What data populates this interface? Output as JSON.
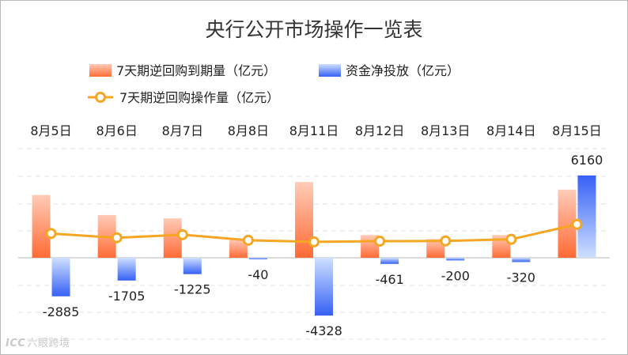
{
  "chart_data": {
    "type": "bar",
    "title": "央行公开市场操作一览表",
    "categories": [
      "8月5日",
      "8月6日",
      "8月7日",
      "8月8日",
      "8月11日",
      "8月12日",
      "8月13日",
      "8月14日",
      "8月15日"
    ],
    "series": [
      {
        "name": "7天期逆回购到期量（亿元）",
        "type": "bar",
        "values": [
          4700,
          3200,
          2950,
          1350,
          5665,
          1700,
          1400,
          1700,
          5100
        ]
      },
      {
        "name": "资金净投放（亿元）",
        "type": "bar",
        "values": [
          -2885,
          -1705,
          -1225,
          -40,
          -4328,
          -461,
          -200,
          -320,
          6160
        ]
      },
      {
        "name": "7天期逆回购操作量（亿元）",
        "type": "line",
        "values": [
          1815,
          1495,
          1725,
          1310,
          1189,
          1239,
          1260,
          1380,
          2500
        ]
      }
    ],
    "data_labels": [
      "-2885",
      "-1705",
      "-1225",
      "-40",
      "-4328",
      "-461",
      "-200",
      "-320",
      "6160"
    ],
    "ylim": [
      -6200,
      7200
    ],
    "grid": true,
    "legend_position": "top",
    "colors": {
      "maturity_bar_top": "#FFCBB8",
      "maturity_bar_bottom": "#FF6B35",
      "net_bar_top": "#CFE0FF",
      "net_bar_bottom": "#3560F5",
      "line": "#F5A623",
      "grid": "#e3e3e3",
      "axis": "#cfcfcf",
      "text": "#222222",
      "title": "#333333"
    }
  },
  "watermark": {
    "logo": "ICC",
    "text": "六眼跨境"
  }
}
